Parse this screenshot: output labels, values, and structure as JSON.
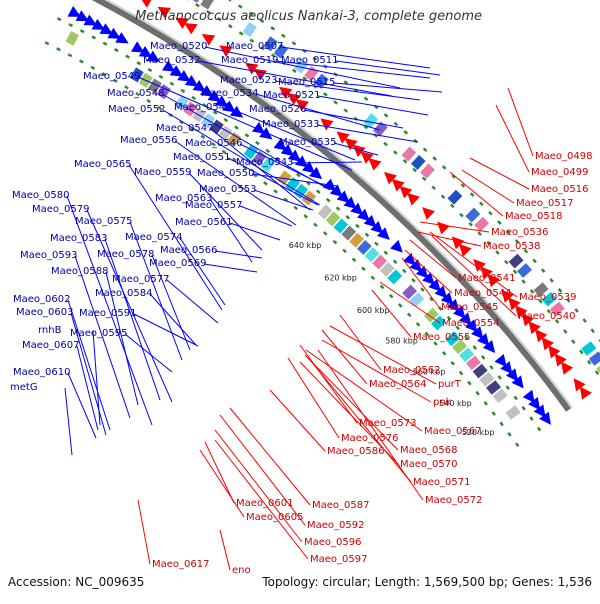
{
  "title": "Methanococcus aeolicus Nankai-3, complete genome",
  "accession": "Accession: NC_009635",
  "topology": "Topology: circular; Length: 1,569,500 bp; Genes: 1,536",
  "colors": {
    "forward": "#0000ff",
    "reverse": "#ff0000",
    "backbone": "#777777",
    "tickdash": "#2e8b2e"
  },
  "ticks": [
    "520 kbp",
    "540 kbp",
    "560 kbp",
    "580 kbp",
    "600 kbp",
    "620 kbp",
    "640 kbp"
  ],
  "forward_genes": [
    "Maeo_0520",
    "Maeo_0507",
    "Maeo_0532",
    "Maeo_0519",
    "Maeo_0511",
    "Maeo_0549",
    "Maeo_0523",
    "Maeo_0515",
    "Maeo_0548",
    "Maeo_0534",
    "Maeo_0521",
    "Maeo_0552",
    "Maeo_0542",
    "Maeo_0526",
    "Maeo_0533",
    "Maeo_0547",
    "Maeo_0556",
    "Maeo_0546",
    "Maeo_0535",
    "Maeo_0551",
    "Maeo_0565",
    "Maeo_0543",
    "Maeo_0559",
    "Maeo_0550",
    "Maeo_0553",
    "Maeo_0580",
    "Maeo_0563",
    "Maeo_0579",
    "Maeo_0557",
    "Maeo_0575",
    "Maeo_0561",
    "Maeo_0583",
    "Maeo_0574",
    "Maeo_0593",
    "Maeo_0578",
    "Maeo_0566",
    "Maeo_0569",
    "Maeo_0588",
    "Maeo_0577",
    "Maeo_0584",
    "Maeo_0602",
    "Maeo_0603",
    "Maeo_0591",
    "rnhB",
    "Maeo_0595",
    "Maeo_0607",
    "Maeo_0610",
    "metG"
  ],
  "reverse_genes": [
    "Maeo_0498",
    "Maeo_0499",
    "Maeo_0516",
    "Maeo_0517",
    "Maeo_0518",
    "Maeo_0536",
    "Maeo_0538",
    "Maeo_0541",
    "Maeo_0539",
    "Maeo_0544",
    "Maeo_0545",
    "Maeo_0540",
    "Maeo_0554",
    "Maeo_0555",
    "Maeo_0562",
    "purT",
    "Maeo_0564",
    "pnk",
    "Maeo_0573",
    "Maeo_0567",
    "Maeo_0576",
    "Maeo_0568",
    "Maeo_0586",
    "Maeo_0570",
    "Maeo_0571",
    "Maeo_0572",
    "Maeo_0587",
    "Maeo_0601",
    "Maeo_0605",
    "Maeo_0592",
    "Maeo_0596",
    "Maeo_0597",
    "Maeo_0617",
    "eno"
  ]
}
